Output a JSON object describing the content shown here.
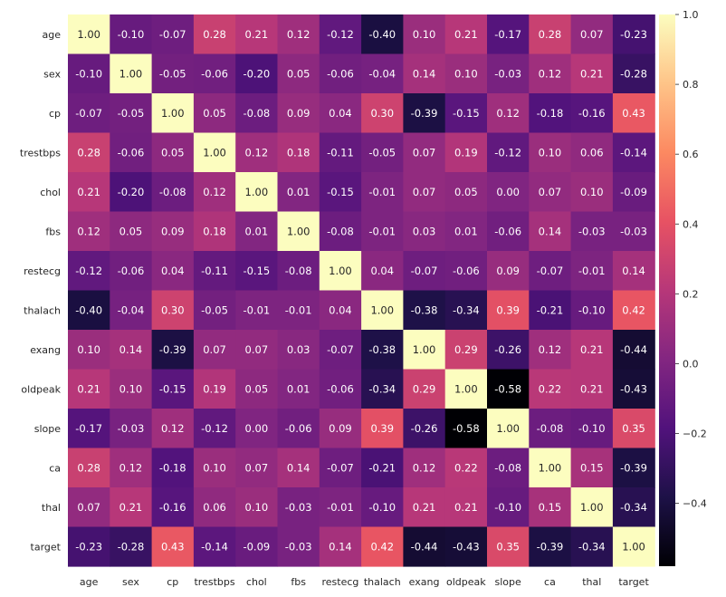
{
  "chart_data": {
    "type": "heatmap",
    "title": "",
    "xlabel": "",
    "ylabel": "",
    "labels": [
      "age",
      "sex",
      "cp",
      "trestbps",
      "chol",
      "fbs",
      "restecg",
      "thalach",
      "exang",
      "oldpeak",
      "slope",
      "ca",
      "thal",
      "target"
    ],
    "values": [
      [
        1.0,
        -0.1,
        -0.07,
        0.28,
        0.21,
        0.12,
        -0.12,
        -0.4,
        0.1,
        0.21,
        -0.17,
        0.28,
        0.07,
        -0.23
      ],
      [
        -0.1,
        1.0,
        -0.05,
        -0.06,
        -0.2,
        0.05,
        -0.06,
        -0.04,
        0.14,
        0.1,
        -0.03,
        0.12,
        0.21,
        -0.28
      ],
      [
        -0.07,
        -0.05,
        1.0,
        0.05,
        -0.08,
        0.09,
        0.04,
        0.3,
        -0.39,
        -0.15,
        0.12,
        -0.18,
        -0.16,
        0.43
      ],
      [
        0.28,
        -0.06,
        0.05,
        1.0,
        0.12,
        0.18,
        -0.11,
        -0.05,
        0.07,
        0.19,
        -0.12,
        0.1,
        0.06,
        -0.14
      ],
      [
        0.21,
        -0.2,
        -0.08,
        0.12,
        1.0,
        0.01,
        -0.15,
        -0.01,
        0.07,
        0.05,
        -0.0,
        0.07,
        0.1,
        -0.09
      ],
      [
        0.12,
        0.05,
        0.09,
        0.18,
        0.01,
        1.0,
        -0.08,
        -0.01,
        0.03,
        0.01,
        -0.06,
        0.14,
        -0.03,
        -0.03
      ],
      [
        -0.12,
        -0.06,
        0.04,
        -0.11,
        -0.15,
        -0.08,
        1.0,
        0.04,
        -0.07,
        -0.06,
        0.09,
        -0.07,
        -0.01,
        0.14
      ],
      [
        -0.4,
        -0.04,
        0.3,
        -0.05,
        -0.01,
        -0.01,
        0.04,
        1.0,
        -0.38,
        -0.34,
        0.39,
        -0.21,
        -0.1,
        0.42
      ],
      [
        0.1,
        0.14,
        -0.39,
        0.07,
        0.07,
        0.03,
        -0.07,
        -0.38,
        1.0,
        0.29,
        -0.26,
        0.12,
        0.21,
        -0.44
      ],
      [
        0.21,
        0.1,
        -0.15,
        0.19,
        0.05,
        0.01,
        -0.06,
        -0.34,
        0.29,
        1.0,
        -0.58,
        0.22,
        0.21,
        -0.43
      ],
      [
        -0.17,
        -0.03,
        0.12,
        -0.12,
        -0.0,
        -0.06,
        0.09,
        0.39,
        -0.26,
        -0.58,
        1.0,
        -0.08,
        -0.1,
        0.35
      ],
      [
        0.28,
        0.12,
        -0.18,
        0.1,
        0.07,
        0.14,
        -0.07,
        -0.21,
        0.12,
        0.22,
        -0.08,
        1.0,
        0.15,
        -0.39
      ],
      [
        0.07,
        0.21,
        -0.16,
        0.06,
        0.1,
        -0.03,
        -0.01,
        -0.1,
        0.21,
        0.21,
        -0.1,
        0.15,
        1.0,
        -0.34
      ],
      [
        -0.23,
        -0.28,
        0.43,
        -0.14,
        -0.09,
        -0.03,
        0.14,
        0.42,
        -0.44,
        -0.43,
        0.35,
        -0.39,
        -0.34,
        1.0
      ]
    ],
    "value_format": "2 decimals",
    "colormap": "magma",
    "vmin": -0.58,
    "vmax": 1.0,
    "colorbar": {
      "placement": "right",
      "ticks": [
        1.0,
        0.8,
        0.6,
        0.4,
        0.2,
        0.0,
        -0.2,
        -0.4
      ],
      "tick_labels": [
        "1.0",
        "0.8",
        "0.6",
        "0.4",
        "0.2",
        "0.0",
        "−0.2",
        "−0.4"
      ]
    },
    "grid": false
  }
}
